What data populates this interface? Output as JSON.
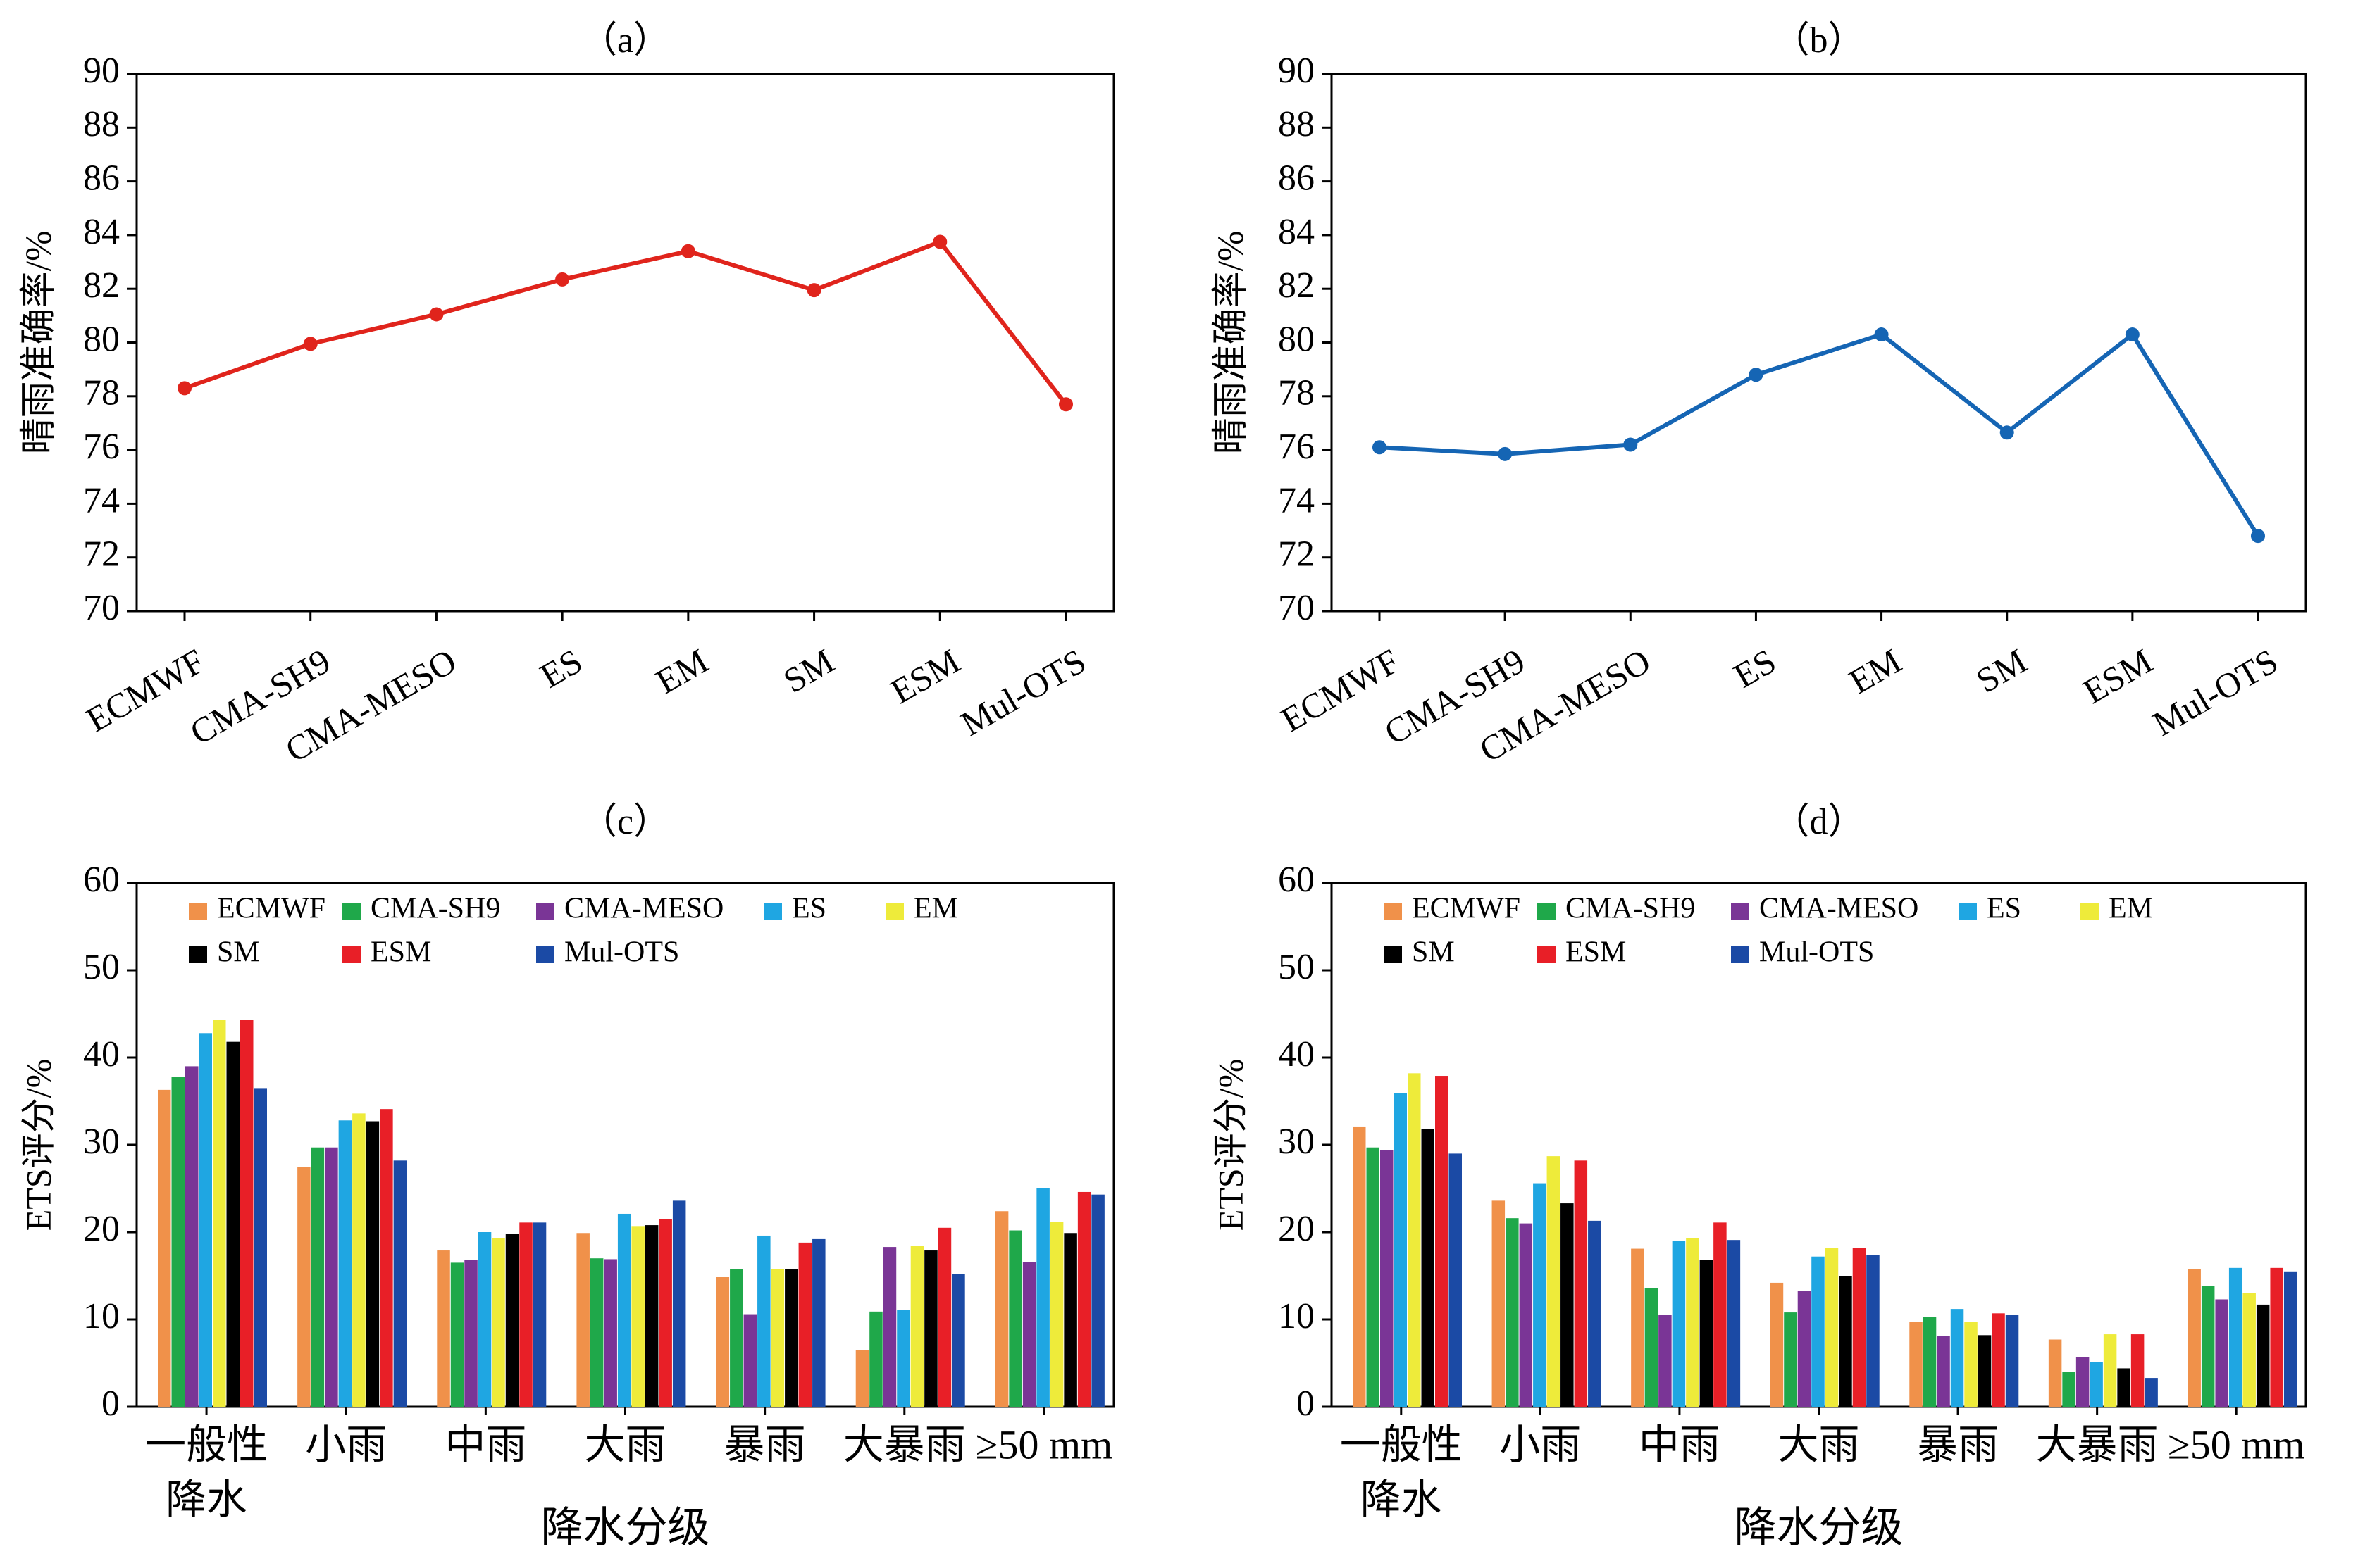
{
  "chart_data": [
    {
      "panel": "(a)",
      "type": "line",
      "title": "（a）",
      "ylabel": "晴雨准确率/%",
      "xlabel": "",
      "categories": [
        "ECMWF",
        "CMA-SH9",
        "CMA-MESO",
        "ES",
        "EM",
        "SM",
        "ESM",
        "Mul-OTS"
      ],
      "ylim": [
        70,
        90
      ],
      "yticks": [
        70,
        72,
        74,
        76,
        78,
        80,
        82,
        84,
        86,
        88,
        90
      ],
      "series": [
        {
          "color": "#e0241c",
          "values": [
            78.3,
            79.95,
            81.05,
            82.35,
            83.4,
            81.95,
            83.75,
            77.7
          ]
        }
      ]
    },
    {
      "panel": "(b)",
      "type": "line",
      "title": "（b）",
      "ylabel": "晴雨准确率/%",
      "xlabel": "",
      "categories": [
        "ECMWF",
        "CMA-SH9",
        "CMA-MESO",
        "ES",
        "EM",
        "SM",
        "ESM",
        "Mul-OTS"
      ],
      "ylim": [
        70,
        90
      ],
      "yticks": [
        70,
        72,
        74,
        76,
        78,
        80,
        82,
        84,
        86,
        88,
        90
      ],
      "series": [
        {
          "color": "#1565b4",
          "values": [
            76.1,
            75.85,
            76.2,
            78.8,
            80.3,
            76.65,
            80.3,
            72.8
          ]
        }
      ]
    },
    {
      "panel": "(c)",
      "type": "bar",
      "title": "（c）",
      "ylabel": "ETS评分/%",
      "xlabel": "降水分级",
      "categories": [
        [
          "一般性",
          "降水"
        ],
        [
          "小雨"
        ],
        [
          "中雨"
        ],
        [
          "大雨"
        ],
        [
          "暴雨"
        ],
        [
          "大暴雨"
        ],
        [
          "≥50 mm"
        ]
      ],
      "ylim": [
        0,
        60
      ],
      "yticks": [
        0,
        10,
        20,
        30,
        40,
        50,
        60
      ],
      "legend": "top-left",
      "series": [
        {
          "name": "ECMWF",
          "color": "#f0914a",
          "values": [
            36.3,
            27.5,
            17.9,
            19.9,
            14.9,
            6.5,
            22.4
          ]
        },
        {
          "name": "CMA-SH9",
          "color": "#1fa84a",
          "values": [
            37.8,
            29.7,
            16.5,
            17.0,
            15.8,
            10.9,
            20.2
          ]
        },
        {
          "name": "CMA-MESO",
          "color": "#7a3596",
          "values": [
            39.0,
            29.7,
            16.8,
            16.9,
            10.6,
            18.3,
            16.6
          ]
        },
        {
          "name": "ES",
          "color": "#1fa6e2",
          "values": [
            42.8,
            32.8,
            20.0,
            22.1,
            19.6,
            11.1,
            25.0
          ]
        },
        {
          "name": "EM",
          "color": "#eeeb3a",
          "values": [
            44.3,
            33.6,
            19.3,
            20.7,
            15.8,
            18.4,
            21.2
          ]
        },
        {
          "name": "SM",
          "color": "#000000",
          "values": [
            41.8,
            32.7,
            19.8,
            20.8,
            15.8,
            17.9,
            19.9
          ]
        },
        {
          "name": "ESM",
          "color": "#e81f27",
          "values": [
            44.3,
            34.1,
            21.1,
            21.5,
            18.8,
            20.5,
            24.6
          ]
        },
        {
          "name": "Mul-OTS",
          "color": "#1b4aa5",
          "values": [
            36.5,
            28.2,
            21.1,
            23.6,
            19.2,
            15.2,
            24.3
          ]
        }
      ]
    },
    {
      "panel": "(d)",
      "type": "bar",
      "title": "（d）",
      "ylabel": "ETS评分/%",
      "xlabel": "降水分级",
      "categories": [
        [
          "一般性",
          "降水"
        ],
        [
          "小雨"
        ],
        [
          "中雨"
        ],
        [
          "大雨"
        ],
        [
          "暴雨"
        ],
        [
          "大暴雨"
        ],
        [
          "≥50 mm"
        ]
      ],
      "ylim": [
        0,
        60
      ],
      "yticks": [
        0,
        10,
        20,
        30,
        40,
        50,
        60
      ],
      "legend": "top-left",
      "series": [
        {
          "name": "ECMWF",
          "color": "#f0914a",
          "values": [
            32.1,
            23.6,
            18.1,
            14.2,
            9.7,
            7.7,
            15.8
          ]
        },
        {
          "name": "CMA-SH9",
          "color": "#1fa84a",
          "values": [
            29.7,
            21.6,
            13.6,
            10.8,
            10.3,
            4.0,
            13.8
          ]
        },
        {
          "name": "CMA-MESO",
          "color": "#7a3596",
          "values": [
            29.4,
            21.0,
            10.5,
            13.3,
            8.1,
            5.7,
            12.3
          ]
        },
        {
          "name": "ES",
          "color": "#1fa6e2",
          "values": [
            35.9,
            25.6,
            19.0,
            17.2,
            11.2,
            5.1,
            15.9
          ]
        },
        {
          "name": "EM",
          "color": "#eeeb3a",
          "values": [
            38.2,
            28.7,
            19.3,
            18.2,
            9.7,
            8.3,
            13.0
          ]
        },
        {
          "name": "SM",
          "color": "#000000",
          "values": [
            31.8,
            23.3,
            16.8,
            15.0,
            8.2,
            4.4,
            11.7
          ]
        },
        {
          "name": "ESM",
          "color": "#e81f27",
          "values": [
            37.9,
            28.2,
            21.1,
            18.2,
            10.7,
            8.3,
            15.9
          ]
        },
        {
          "name": "Mul-OTS",
          "color": "#1b4aa5",
          "values": [
            29.0,
            21.3,
            19.1,
            17.4,
            10.5,
            3.3,
            15.5
          ]
        }
      ]
    }
  ]
}
